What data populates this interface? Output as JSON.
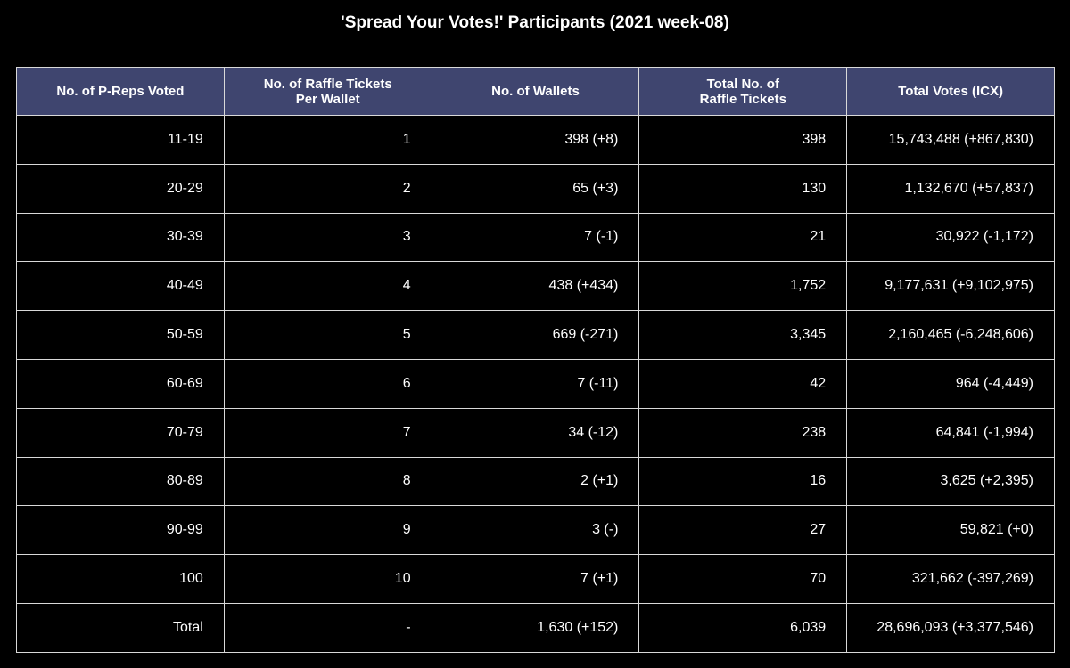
{
  "chart_data": {
    "type": "table",
    "title": "'Spread Your Votes!' Participants (2021 week-08)",
    "header_color": "#3f456f",
    "background_color": "#000000",
    "border_color": "#d9d9d9",
    "columns": [
      "No. of P-Reps Voted",
      "No. of Raffle Tickets\nPer Wallet",
      "No. of Wallets",
      "Total No. of\nRaffle Tickets",
      "Total Votes (ICX)"
    ],
    "rows": [
      [
        "11-19",
        "1",
        "398 (+8)",
        "398",
        "15,743,488 (+867,830)"
      ],
      [
        "20-29",
        "2",
        "65 (+3)",
        "130",
        "1,132,670 (+57,837)"
      ],
      [
        "30-39",
        "3",
        "7 (-1)",
        "21",
        "30,922 (-1,172)"
      ],
      [
        "40-49",
        "4",
        "438 (+434)",
        "1,752",
        "9,177,631 (+9,102,975)"
      ],
      [
        "50-59",
        "5",
        "669 (-271)",
        "3,345",
        "2,160,465 (-6,248,606)"
      ],
      [
        "60-69",
        "6",
        "7 (-11)",
        "42",
        "964 (-4,449)"
      ],
      [
        "70-79",
        "7",
        "34 (-12)",
        "238",
        "64,841 (-1,994)"
      ],
      [
        "80-89",
        "8",
        "2 (+1)",
        "16",
        "3,625 (+2,395)"
      ],
      [
        "90-99",
        "9",
        "3 (-)",
        "27",
        "59,821 (+0)"
      ],
      [
        "100",
        "10",
        "7 (+1)",
        "70",
        "321,662 (-397,269)"
      ],
      [
        "Total",
        "-",
        "1,630 (+152)",
        "6,039",
        "28,696,093 (+3,377,546)"
      ]
    ]
  }
}
